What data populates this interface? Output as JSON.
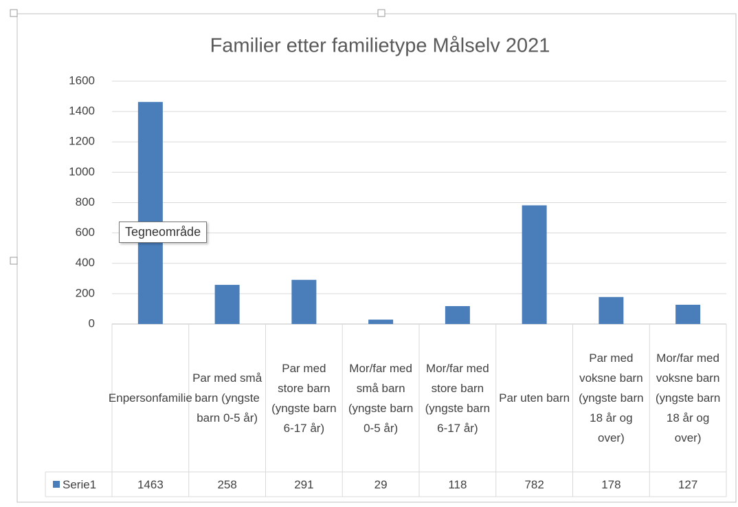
{
  "chart_data": {
    "type": "bar",
    "title": "Familier etter familietype Målselv 2021",
    "categories": [
      "Enpersonfamilie",
      "Par med små barn (yngste barn 0-5 år)",
      "Par med store barn (yngste barn 6-17 år)",
      "Mor/far med små barn (yngste barn 0-5 år)",
      "Mor/far med store barn (yngste barn 6-17 år)",
      "Par uten barn",
      "Par med voksne barn (yngste barn 18 år og over)",
      "Mor/far med voksne barn (yngste barn 18 år og over)"
    ],
    "series": [
      {
        "name": "Serie1",
        "color": "#4a7ebb",
        "values": [
          1463,
          258,
          291,
          29,
          118,
          782,
          178,
          127
        ]
      }
    ],
    "ylim": [
      0,
      1600
    ],
    "yticks": [
      0,
      200,
      400,
      600,
      800,
      1000,
      1200,
      1400,
      1600
    ],
    "grid": true,
    "data_table": true,
    "tooltip": "Tegneområde"
  }
}
